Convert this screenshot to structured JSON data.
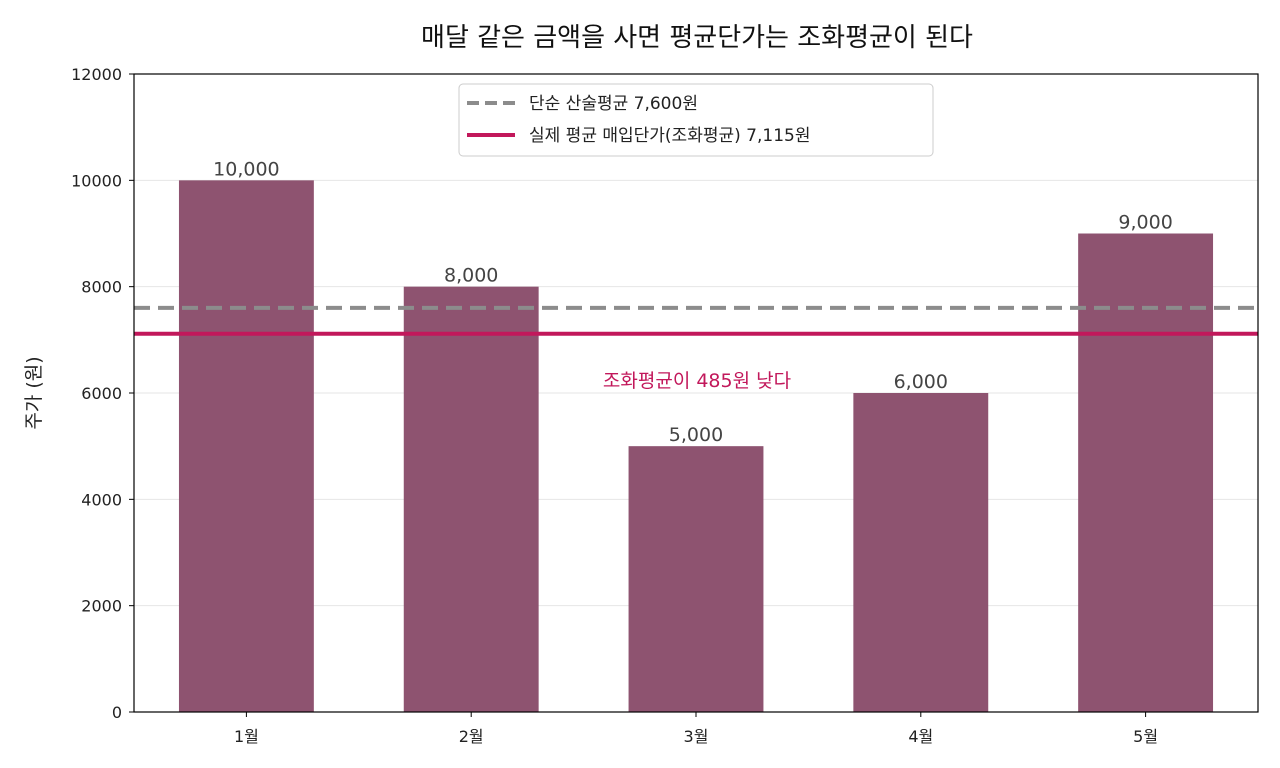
{
  "chart_data": {
    "type": "bar",
    "title": "매달 같은 금액을 사면 평균단가는 조화평균이 된다",
    "xlabel": "",
    "ylabel": "주가 (원)",
    "categories": [
      "1월",
      "2월",
      "3월",
      "4월",
      "5월"
    ],
    "values": [
      10000,
      8000,
      5000,
      6000,
      9000
    ],
    "value_labels": [
      "10,000",
      "8,000",
      "5,000",
      "6,000",
      "9,000"
    ],
    "ylim": [
      0,
      12000
    ],
    "yticks": [
      0,
      2000,
      4000,
      6000,
      8000,
      10000,
      12000
    ],
    "ytick_labels": [
      "0",
      "2000",
      "4000",
      "6000",
      "8000",
      "10000",
      "12000"
    ],
    "grid": "y",
    "legend_position": "top-center",
    "reference_lines": [
      {
        "label": "단순 산술평균  7,600원",
        "value": 7600,
        "style": "dashed",
        "color": "#8c8c8c"
      },
      {
        "label": "실제 평균 매입단가(조화평균)  7,115원",
        "value": 7115,
        "style": "solid",
        "color": "#c2185b"
      }
    ],
    "annotation": {
      "text": "조화평균이 485원 낮다",
      "color": "#c2185b"
    },
    "bar_color": "#8e5370"
  }
}
